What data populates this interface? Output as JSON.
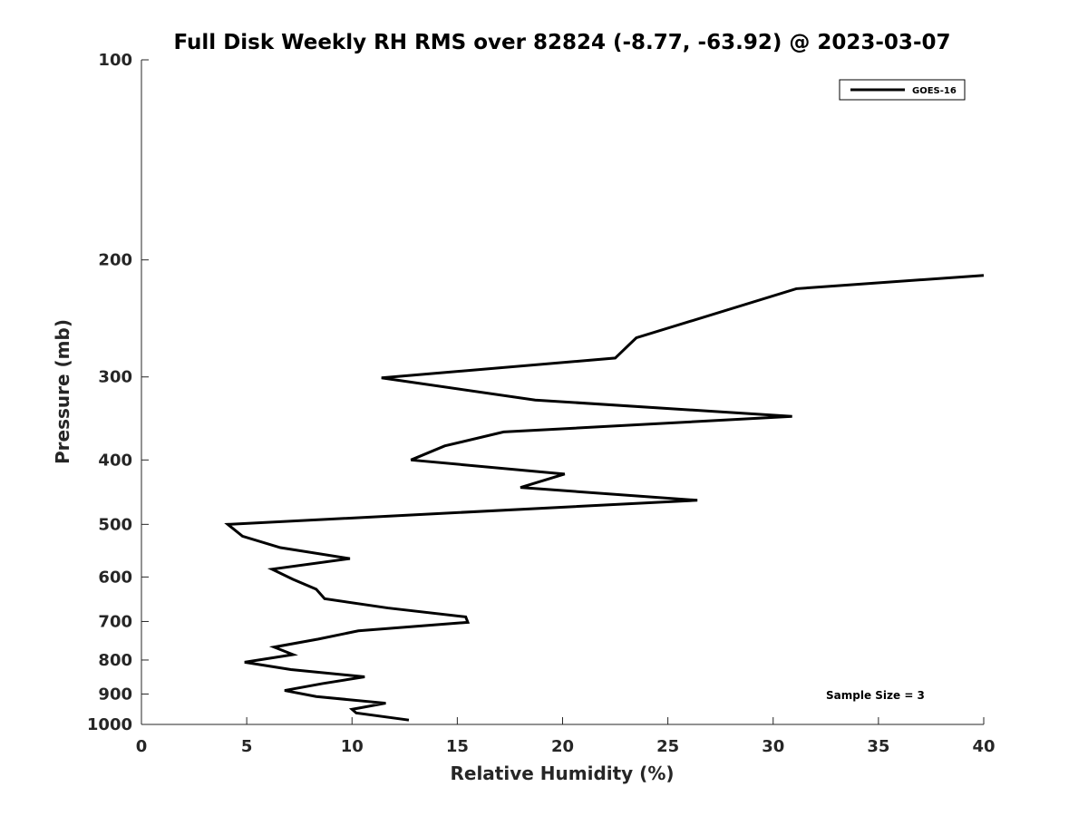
{
  "chart_data": {
    "type": "line",
    "title": "Full Disk Weekly RH RMS over 82824 (-8.77, -63.92) @ 2023-03-07",
    "xlabel": "Relative Humidity (%)",
    "ylabel": "Pressure (mb)",
    "xlim": [
      0,
      40
    ],
    "ylim": [
      1000,
      100
    ],
    "y_scale": "log",
    "y_reversed": true,
    "x_ticks": [
      0,
      5,
      10,
      15,
      20,
      25,
      30,
      35,
      40
    ],
    "y_ticks": [
      100,
      200,
      300,
      400,
      500,
      600,
      700,
      800,
      900,
      1000
    ],
    "grid": false,
    "legend_position": "top-right",
    "annotation": "Sample Size = 3",
    "series": [
      {
        "name": "GOES-16",
        "color": "#000000",
        "points": [
          {
            "x": 40.0,
            "y": 211
          },
          {
            "x": 31.1,
            "y": 221
          },
          {
            "x": 23.5,
            "y": 262
          },
          {
            "x": 22.5,
            "y": 281
          },
          {
            "x": 11.4,
            "y": 301
          },
          {
            "x": 18.7,
            "y": 325
          },
          {
            "x": 30.9,
            "y": 344
          },
          {
            "x": 17.2,
            "y": 363
          },
          {
            "x": 14.4,
            "y": 381
          },
          {
            "x": 12.8,
            "y": 400
          },
          {
            "x": 20.1,
            "y": 420
          },
          {
            "x": 18.0,
            "y": 440
          },
          {
            "x": 26.4,
            "y": 460
          },
          {
            "x": 4.1,
            "y": 500
          },
          {
            "x": 4.8,
            "y": 521
          },
          {
            "x": 6.6,
            "y": 542
          },
          {
            "x": 9.9,
            "y": 563
          },
          {
            "x": 6.2,
            "y": 584
          },
          {
            "x": 7.2,
            "y": 605
          },
          {
            "x": 8.3,
            "y": 626
          },
          {
            "x": 8.7,
            "y": 647
          },
          {
            "x": 11.7,
            "y": 668
          },
          {
            "x": 15.4,
            "y": 689
          },
          {
            "x": 15.5,
            "y": 702
          },
          {
            "x": 10.3,
            "y": 723
          },
          {
            "x": 8.4,
            "y": 744
          },
          {
            "x": 6.3,
            "y": 765
          },
          {
            "x": 7.2,
            "y": 785
          },
          {
            "x": 4.9,
            "y": 806
          },
          {
            "x": 7.1,
            "y": 827
          },
          {
            "x": 10.6,
            "y": 848
          },
          {
            "x": 8.6,
            "y": 868
          },
          {
            "x": 6.8,
            "y": 889
          },
          {
            "x": 8.3,
            "y": 908
          },
          {
            "x": 11.6,
            "y": 929
          },
          {
            "x": 10.0,
            "y": 949
          },
          {
            "x": 10.2,
            "y": 961
          },
          {
            "x": 12.7,
            "y": 985
          }
        ]
      }
    ]
  }
}
